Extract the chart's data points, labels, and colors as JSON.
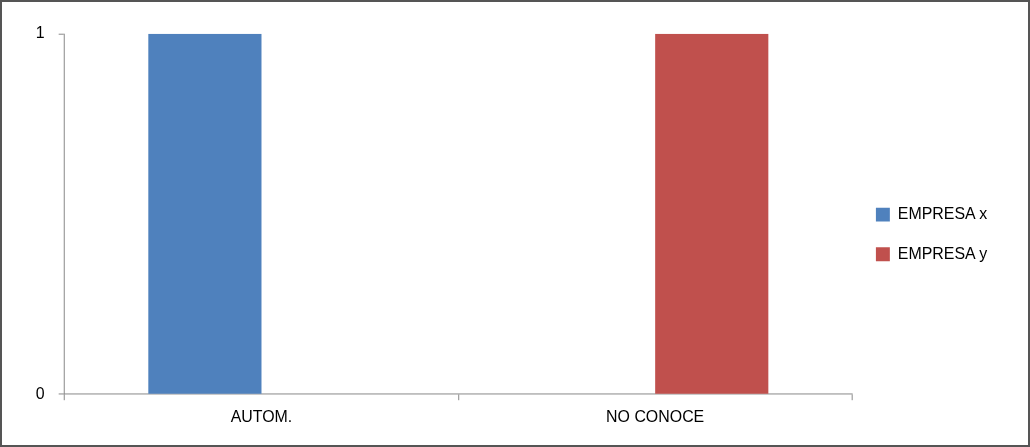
{
  "chart_data": {
    "type": "bar",
    "categories": [
      "AUTOM.",
      "NO CONOCE"
    ],
    "series": [
      {
        "name": "EMPRESA x",
        "color": "#4f81bd",
        "values": [
          1,
          0
        ]
      },
      {
        "name": "EMPRESA y",
        "color": "#c0504d",
        "values": [
          0,
          1
        ]
      }
    ],
    "ylim": [
      0,
      1
    ],
    "yticks": [
      0,
      1
    ],
    "legend": "right"
  }
}
